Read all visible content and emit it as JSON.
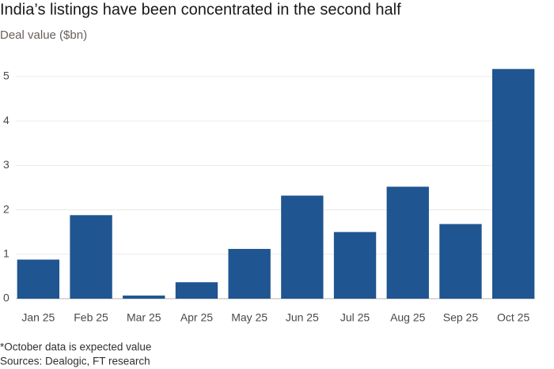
{
  "chart_data": {
    "type": "bar",
    "title": "India’s listings have been concentrated in the second half",
    "subtitle": "Deal value ($bn)",
    "categories": [
      "Jan 25",
      "Feb 25",
      "Mar 25",
      "Apr 25",
      "May 25",
      "Jun 25",
      "Jul 25",
      "Aug 25",
      "Sep 25",
      "Oct 25"
    ],
    "values": [
      0.88,
      1.88,
      0.07,
      0.37,
      1.12,
      2.32,
      1.5,
      2.52,
      1.68,
      5.17
    ],
    "color": "#1f5591",
    "ylim": [
      0,
      5.3
    ],
    "yticks": [
      0,
      1,
      2,
      3,
      4,
      5
    ],
    "grid": true,
    "notes": [
      "*October data is expected value",
      "Sources: Dealogic, FT research"
    ]
  }
}
